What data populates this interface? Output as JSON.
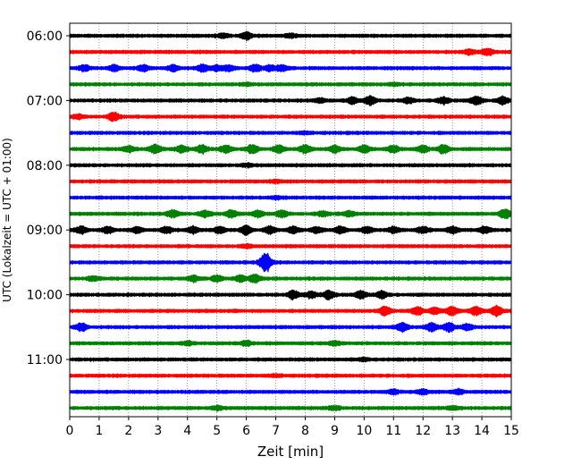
{
  "chart_data": {
    "type": "line",
    "title": "",
    "xlabel": "Zeit  [min]",
    "ylabel": "UTC (Lokalzeit = UTC + 01:00)",
    "xlim": [
      0,
      15
    ],
    "x_ticks": [
      "0",
      "1",
      "2",
      "3",
      "4",
      "5",
      "6",
      "7",
      "8",
      "9",
      "10",
      "11",
      "12",
      "13",
      "14",
      "15"
    ],
    "y_ticks": [
      {
        "label": "06:00",
        "row": 0
      },
      {
        "label": "07:00",
        "row": 4
      },
      {
        "label": "08:00",
        "row": 8
      },
      {
        "label": "09:00",
        "row": 12
      },
      {
        "label": "10:00",
        "row": 16
      },
      {
        "label": "11:00",
        "row": 20
      }
    ],
    "grid": {
      "vertical": true,
      "style": "dotted"
    },
    "line_colors": [
      "#000000",
      "#ff0000",
      "#0000ff",
      "#008000"
    ],
    "rows": [
      {
        "start": "06:00",
        "color": "#000000",
        "bursts": [
          [
            6.0,
            3.0
          ],
          [
            5.2,
            1.8
          ],
          [
            7.5,
            1.5
          ]
        ]
      },
      {
        "start": "06:15",
        "color": "#ff0000",
        "bursts": [
          [
            14.2,
            3.0
          ],
          [
            13.6,
            2.0
          ]
        ]
      },
      {
        "start": "06:30",
        "color": "#0000ff",
        "bursts": [
          [
            0.5,
            2.5
          ],
          [
            1.5,
            2.5
          ],
          [
            2.5,
            2.5
          ],
          [
            3.5,
            2.5
          ],
          [
            4.5,
            3.0
          ],
          [
            5.4,
            2.5
          ],
          [
            6.3,
            3.0
          ],
          [
            7.2,
            2.5
          ],
          [
            5.0,
            2.2
          ],
          [
            6.8,
            2.2
          ]
        ]
      },
      {
        "start": "06:45",
        "color": "#008000",
        "bursts": [
          [
            6.0,
            1.0
          ],
          [
            11.0,
            1.0
          ]
        ]
      },
      {
        "start": "07:00",
        "color": "#000000",
        "bursts": [
          [
            10.2,
            3.5
          ],
          [
            9.6,
            2.5
          ],
          [
            11.5,
            2.5
          ],
          [
            12.7,
            3.0
          ],
          [
            13.8,
            3.5
          ],
          [
            14.7,
            3.0
          ],
          [
            8.5,
            1.8
          ]
        ]
      },
      {
        "start": "07:15",
        "color": "#ff0000",
        "bursts": [
          [
            1.5,
            3.5
          ],
          [
            0.3,
            1.5
          ]
        ]
      },
      {
        "start": "07:30",
        "color": "#0000ff",
        "bursts": [
          [
            8.0,
            1.0
          ]
        ]
      },
      {
        "start": "07:45",
        "color": "#008000",
        "bursts": [
          [
            2.0,
            2.5
          ],
          [
            2.9,
            4.0
          ],
          [
            3.8,
            3.0
          ],
          [
            4.5,
            3.5
          ],
          [
            5.3,
            3.0
          ],
          [
            6.2,
            3.5
          ],
          [
            7.1,
            3.0
          ],
          [
            8.0,
            3.5
          ],
          [
            9.0,
            3.0
          ],
          [
            10.0,
            3.5
          ],
          [
            11.0,
            3.0
          ],
          [
            12.0,
            3.0
          ],
          [
            12.7,
            3.5
          ]
        ]
      },
      {
        "start": "08:00",
        "color": "#000000",
        "bursts": [
          [
            6.0,
            1.2
          ]
        ]
      },
      {
        "start": "08:15",
        "color": "#ff0000",
        "bursts": [
          [
            7.0,
            1.0
          ]
        ]
      },
      {
        "start": "08:30",
        "color": "#0000ff",
        "bursts": [
          [
            7.0,
            1.0
          ]
        ]
      },
      {
        "start": "08:45",
        "color": "#008000",
        "bursts": [
          [
            3.5,
            3.0
          ],
          [
            4.6,
            2.5
          ],
          [
            5.5,
            3.0
          ],
          [
            6.4,
            2.5
          ],
          [
            7.2,
            3.0
          ],
          [
            8.6,
            2.0
          ],
          [
            9.5,
            2.0
          ],
          [
            14.8,
            4.0
          ]
        ]
      },
      {
        "start": "09:00",
        "color": "#000000",
        "bursts": [
          [
            0.4,
            3.0
          ],
          [
            1.3,
            2.5
          ],
          [
            2.3,
            2.5
          ],
          [
            3.3,
            2.5
          ],
          [
            4.2,
            3.0
          ],
          [
            5.1,
            2.5
          ],
          [
            6.0,
            3.5
          ],
          [
            6.8,
            3.0
          ],
          [
            7.6,
            3.0
          ],
          [
            8.4,
            2.5
          ],
          [
            9.2,
            3.0
          ],
          [
            10.1,
            2.5
          ],
          [
            11.0,
            2.5
          ],
          [
            12.0,
            3.0
          ],
          [
            13.0,
            2.5
          ],
          [
            14.1,
            3.0
          ]
        ]
      },
      {
        "start": "09:15",
        "color": "#ff0000",
        "bursts": [
          [
            6.0,
            1.2
          ]
        ]
      },
      {
        "start": "09:30",
        "color": "#0000ff",
        "bursts": [
          [
            6.65,
            9.0
          ]
        ]
      },
      {
        "start": "09:45",
        "color": "#008000",
        "bursts": [
          [
            4.2,
            2.5
          ],
          [
            5.0,
            2.5
          ],
          [
            5.8,
            2.5
          ],
          [
            6.3,
            3.5
          ],
          [
            0.8,
            1.8
          ]
        ]
      },
      {
        "start": "10:00",
        "color": "#000000",
        "bursts": [
          [
            7.6,
            3.5
          ],
          [
            8.8,
            3.5
          ],
          [
            9.9,
            3.5
          ],
          [
            10.6,
            3.0
          ],
          [
            8.2,
            2.5
          ]
        ]
      },
      {
        "start": "10:15",
        "color": "#ff0000",
        "bursts": [
          [
            10.7,
            4.0
          ],
          [
            11.8,
            3.5
          ],
          [
            13.0,
            3.5
          ],
          [
            13.8,
            4.0
          ],
          [
            14.5,
            4.0
          ],
          [
            12.4,
            3.0
          ]
        ]
      },
      {
        "start": "10:30",
        "color": "#0000ff",
        "bursts": [
          [
            0.4,
            3.5
          ],
          [
            11.3,
            3.5
          ],
          [
            12.3,
            3.5
          ],
          [
            12.9,
            3.5
          ],
          [
            13.5,
            2.5
          ]
        ]
      },
      {
        "start": "10:45",
        "color": "#008000",
        "bursts": [
          [
            6.0,
            1.8
          ],
          [
            4.0,
            1.5
          ],
          [
            9.0,
            1.5
          ]
        ]
      },
      {
        "start": "11:00",
        "color": "#000000",
        "bursts": [
          [
            10.0,
            1.0
          ]
        ]
      },
      {
        "start": "11:15",
        "color": "#ff0000",
        "bursts": [
          [
            7.0,
            1.0
          ]
        ]
      },
      {
        "start": "11:30",
        "color": "#0000ff",
        "bursts": [
          [
            12.0,
            2.2
          ],
          [
            13.2,
            2.0
          ],
          [
            11.0,
            1.8
          ]
        ]
      },
      {
        "start": "11:45",
        "color": "#008000",
        "bursts": [
          [
            5.0,
            1.5
          ],
          [
            9.0,
            1.5
          ],
          [
            13.0,
            1.5
          ]
        ]
      }
    ]
  }
}
